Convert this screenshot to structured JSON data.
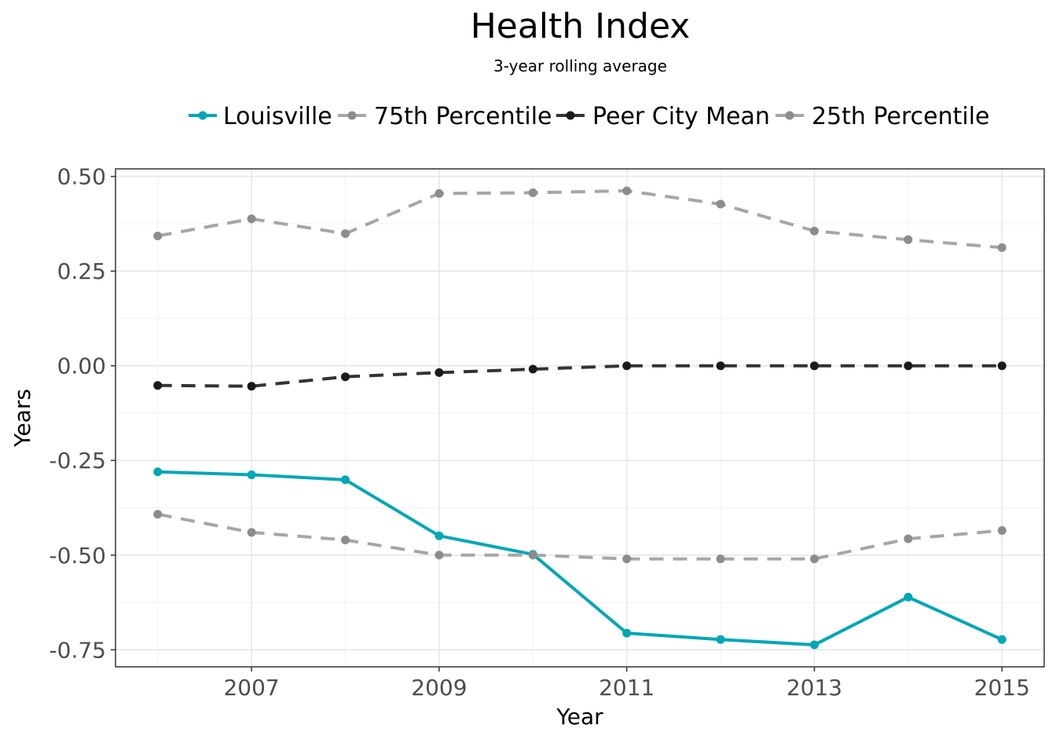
{
  "chart_data": {
    "type": "line",
    "title": "Health Index",
    "subtitle": "3-year rolling average",
    "xlabel": "Year",
    "ylabel": "Years",
    "x": [
      2006,
      2007,
      2008,
      2009,
      2010,
      2011,
      2012,
      2013,
      2014,
      2015
    ],
    "x_ticks": [
      "2007",
      "2009",
      "2011",
      "2013",
      "2015"
    ],
    "y_ticks": [
      "0.50",
      "0.25",
      "0.00",
      "-0.25",
      "-0.50",
      "-0.75"
    ],
    "xlim": [
      2005.55,
      2015.45
    ],
    "ylim": [
      -0.795,
      0.52
    ],
    "grid": true,
    "legend_position": "top",
    "series": [
      {
        "name": "Louisville",
        "style": "solid",
        "color": "#00a7b5",
        "values": [
          -0.28,
          -0.288,
          -0.301,
          -0.449,
          -0.498,
          -0.706,
          -0.723,
          -0.737,
          -0.611,
          -0.723
        ]
      },
      {
        "name": "75th Percentile",
        "style": "dashed",
        "color": "#a6a6a6",
        "values": [
          0.343,
          0.388,
          0.349,
          0.455,
          0.457,
          0.462,
          0.427,
          0.356,
          0.333,
          0.312
        ]
      },
      {
        "name": "Peer City Mean",
        "style": "dashed",
        "color": "#333333",
        "values": [
          -0.052,
          -0.054,
          -0.029,
          -0.018,
          -0.009,
          0.0,
          0.0,
          0.0,
          0.0,
          0.0
        ]
      },
      {
        "name": "25th Percentile",
        "style": "dashed",
        "color": "#a6a6a6",
        "values": [
          -0.392,
          -0.44,
          -0.46,
          -0.5,
          -0.5,
          -0.51,
          -0.51,
          -0.51,
          -0.457,
          -0.435
        ]
      }
    ]
  }
}
